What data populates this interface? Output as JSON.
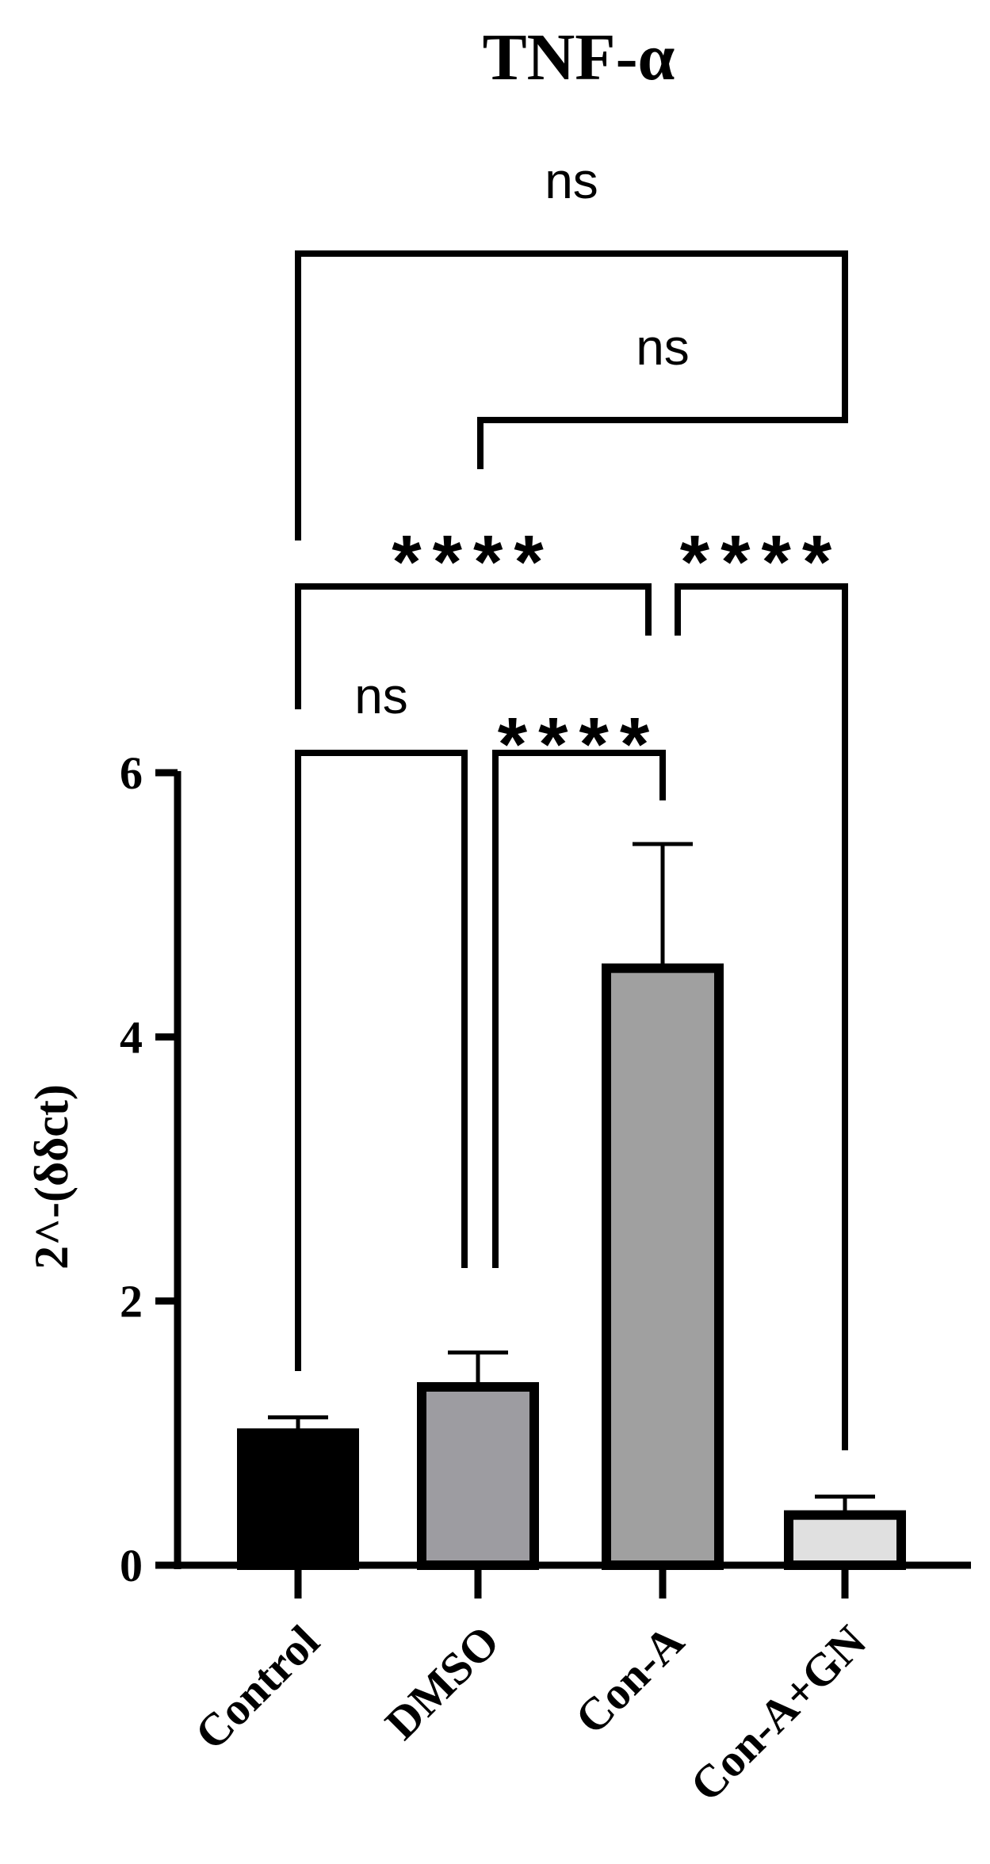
{
  "chart_data": {
    "type": "bar",
    "title": "TNF-α",
    "xlabel": "",
    "ylabel": "2^-(δδct)",
    "categories": [
      "Control",
      "DMSO",
      "Con-A",
      "Con-A+GN"
    ],
    "values": [
      1.0,
      1.35,
      4.52,
      0.38
    ],
    "error_upper": [
      1.12,
      1.61,
      5.46,
      0.52
    ],
    "ylim": [
      0,
      6
    ],
    "yticks": [
      0,
      2,
      4,
      6
    ],
    "bar_fill_colors": [
      "#000000",
      "#9d9ca1",
      "#a0a0a0",
      "#e0e0e0"
    ],
    "bar_edge_color": "#000000",
    "grid": false,
    "significance": [
      {
        "pair": [
          "Control",
          "DMSO"
        ],
        "label": "ns"
      },
      {
        "pair": [
          "DMSO",
          "Con-A"
        ],
        "label": "****"
      },
      {
        "pair": [
          "Control",
          "Con-A"
        ],
        "label": "****"
      },
      {
        "pair": [
          "Con-A",
          "Con-A+GN"
        ],
        "label": "****"
      },
      {
        "pair": [
          "DMSO",
          "Con-A+GN"
        ],
        "label": "ns"
      },
      {
        "pair": [
          "Control",
          "Con-A+GN"
        ],
        "label": "ns"
      }
    ]
  }
}
